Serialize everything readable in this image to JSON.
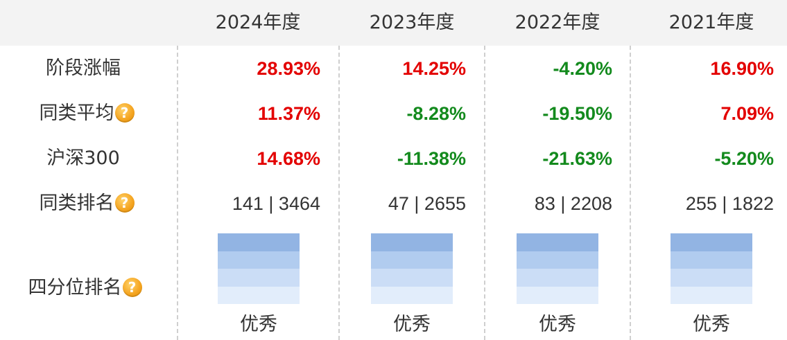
{
  "years": [
    "2024年度",
    "2023年度",
    "2022年度",
    "2021年度"
  ],
  "rows": {
    "stage_gain": {
      "label": "阶段涨幅",
      "values": [
        "28.93%",
        "14.25%",
        "-4.20%",
        "16.90%"
      ]
    },
    "peer_avg": {
      "label": "同类平均",
      "values": [
        "11.37%",
        "-8.28%",
        "-19.50%",
        "7.09%"
      ]
    },
    "hs300": {
      "label": "沪深300",
      "values": [
        "14.68%",
        "-11.38%",
        "-21.63%",
        "-5.20%"
      ]
    },
    "peer_rank": {
      "label": "同类排名",
      "values": [
        "141 | 3464",
        "47 | 2655",
        "83 | 2208",
        "255 | 1822"
      ]
    },
    "quartile": {
      "label": "四分位排名",
      "values": [
        "优秀",
        "优秀",
        "优秀",
        "优秀"
      ],
      "level": [
        4,
        4,
        4,
        4
      ]
    }
  },
  "help_icon": {
    "glyph": "?",
    "name": "question-help-icon"
  },
  "colors": {
    "positive": "#e30000",
    "negative": "#138a1d",
    "header_bg": "#f3f3f3",
    "quartile_shades": [
      "#92b4e3",
      "#b1ccef",
      "#cbddf6",
      "#e2edfb"
    ]
  }
}
